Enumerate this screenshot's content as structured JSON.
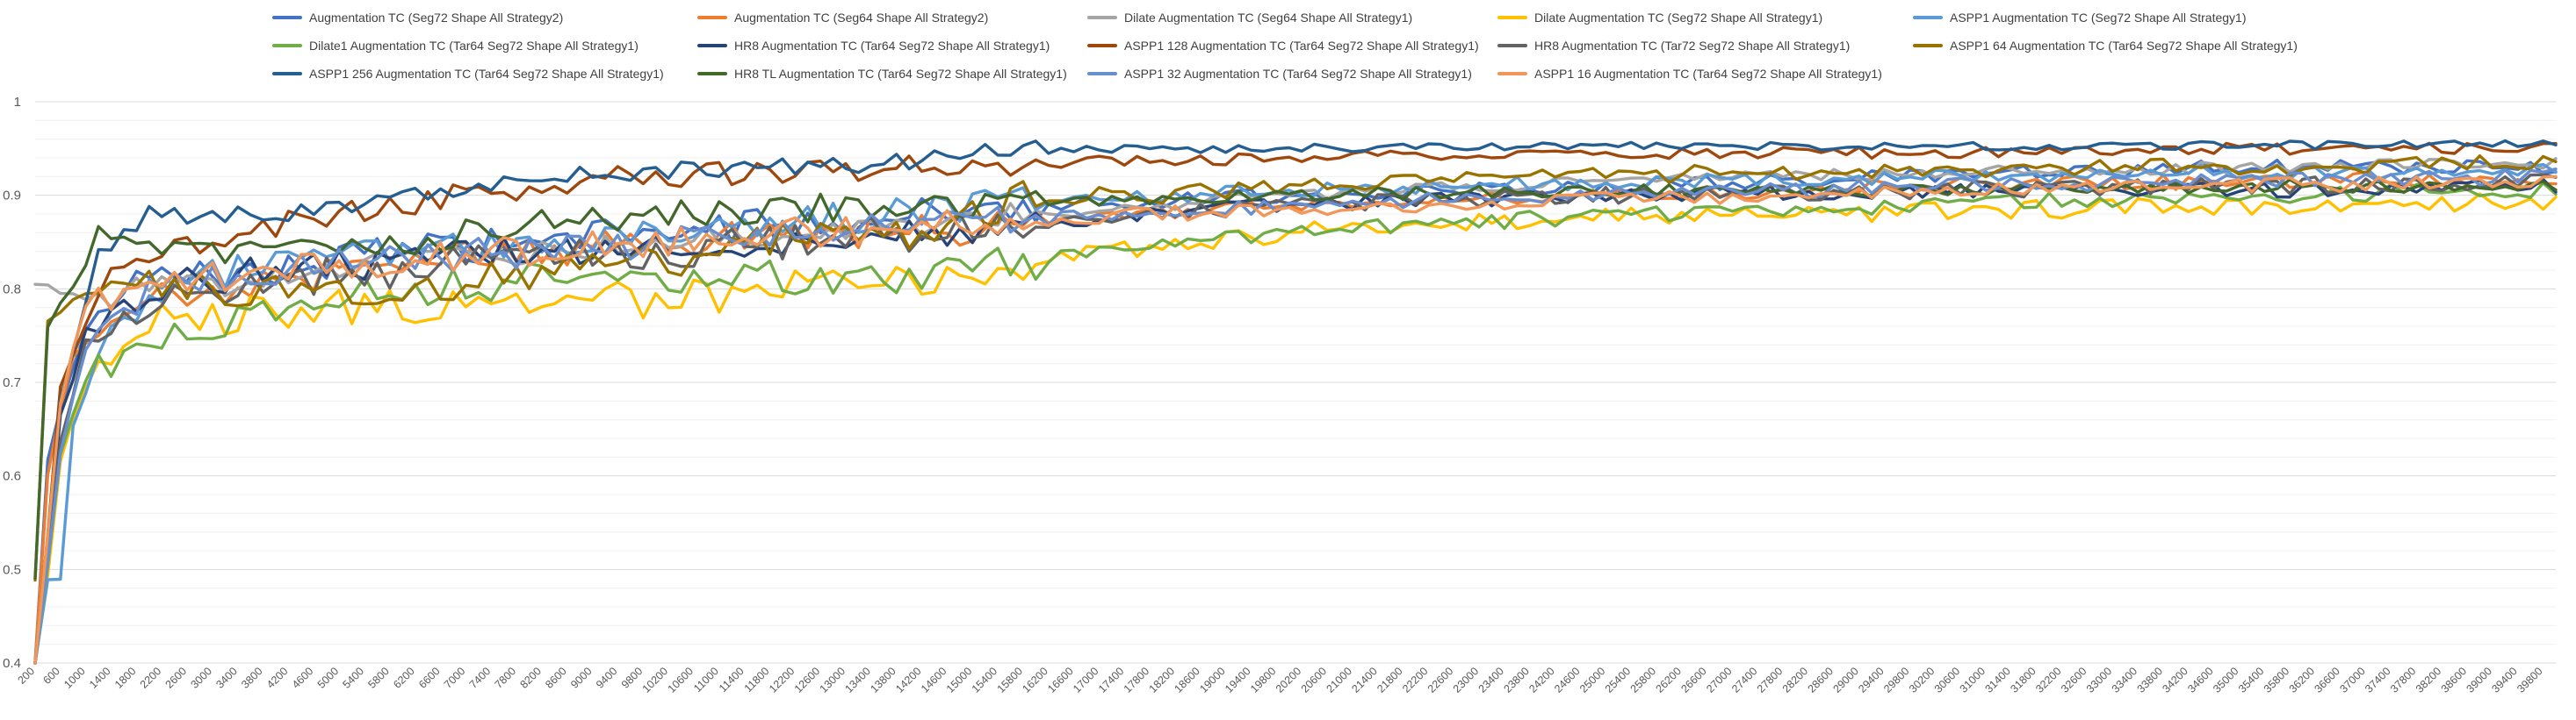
{
  "chart_data": {
    "type": "line",
    "title": "",
    "xlabel": "",
    "ylabel": "",
    "ylim": [
      0.4,
      1.0
    ],
    "y_ticks": [
      "0.4",
      "0.5",
      "0.6",
      "0.7",
      "0.8",
      "0.9",
      "1"
    ],
    "grid": "horizontal major and minor gridlines",
    "legend_position": "top",
    "x_start": 200,
    "x_end": 40000,
    "x_step": 200,
    "x_tick_labels": [
      "200",
      "600",
      "1000",
      "1400",
      "1800",
      "2200",
      "2600",
      "3000",
      "3400",
      "3800",
      "4200",
      "4600",
      "5000",
      "5400",
      "5800",
      "6200",
      "6600",
      "7000",
      "7400",
      "7800",
      "8200",
      "8600",
      "9000",
      "9400",
      "9800",
      "10200",
      "10600",
      "11000",
      "11400",
      "11800",
      "12200",
      "12600",
      "13000",
      "13400",
      "13800",
      "14200",
      "14600",
      "15000",
      "15400",
      "15800",
      "16200",
      "16600",
      "17000",
      "17400",
      "17800",
      "18200",
      "18600",
      "19000",
      "19400",
      "19800",
      "20200",
      "20600",
      "21000",
      "21400",
      "21800",
      "22200",
      "22600",
      "23000",
      "23400",
      "23800",
      "24200",
      "24600",
      "25000",
      "25400",
      "25800",
      "26200",
      "26600",
      "27000",
      "27400",
      "27800",
      "28200",
      "28600",
      "29000",
      "29400",
      "29800",
      "30200",
      "30600",
      "31000",
      "31400",
      "31800",
      "32200",
      "32600",
      "33000",
      "33400",
      "33800",
      "34200",
      "34600",
      "35000",
      "35400",
      "35800",
      "36200",
      "36600",
      "37000",
      "37400",
      "37800",
      "38200",
      "38600",
      "39000",
      "39400",
      "39800"
    ],
    "series": [
      {
        "name": "Augmentation TC (Seg72 Shape All Strategy2)",
        "color": "#4472C4",
        "key_points": [
          [
            200,
            0.38
          ],
          [
            400,
            0.62
          ],
          [
            800,
            0.72
          ],
          [
            1200,
            0.78
          ],
          [
            2000,
            0.81
          ],
          [
            4000,
            0.82
          ],
          [
            6000,
            0.84
          ],
          [
            8000,
            0.85
          ],
          [
            10000,
            0.86
          ],
          [
            12000,
            0.87
          ],
          [
            14000,
            0.88
          ],
          [
            16000,
            0.89
          ],
          [
            20000,
            0.9
          ],
          [
            25000,
            0.91
          ],
          [
            30000,
            0.92
          ],
          [
            35000,
            0.93
          ],
          [
            40000,
            0.93
          ]
        ],
        "noise": 0.018
      },
      {
        "name": "Augmentation TC (Seg64 Shape All Strategy2)",
        "color": "#ED7D31",
        "key_points": [
          [
            200,
            0.38
          ],
          [
            400,
            0.6
          ],
          [
            800,
            0.73
          ],
          [
            1400,
            0.76
          ],
          [
            2000,
            0.79
          ],
          [
            4000,
            0.81
          ],
          [
            6000,
            0.83
          ],
          [
            8000,
            0.84
          ],
          [
            10000,
            0.85
          ],
          [
            12000,
            0.86
          ],
          [
            14000,
            0.86
          ],
          [
            16000,
            0.87
          ],
          [
            20000,
            0.89
          ],
          [
            25000,
            0.9
          ],
          [
            30000,
            0.91
          ],
          [
            35000,
            0.915
          ],
          [
            40000,
            0.92
          ]
        ],
        "noise": 0.018
      },
      {
        "name": "Dilate Augmentation TC (Seg64 Shape All Strategy1)",
        "color": "#A5A5A5",
        "key_points": [
          [
            200,
            0.8
          ],
          [
            600,
            0.8
          ],
          [
            1000,
            0.79
          ],
          [
            2000,
            0.8
          ],
          [
            4000,
            0.81
          ],
          [
            6000,
            0.83
          ],
          [
            8000,
            0.84
          ],
          [
            10000,
            0.85
          ],
          [
            12000,
            0.86
          ],
          [
            14000,
            0.87
          ],
          [
            16000,
            0.88
          ],
          [
            20000,
            0.9
          ],
          [
            25000,
            0.915
          ],
          [
            30000,
            0.925
          ],
          [
            35000,
            0.93
          ],
          [
            40000,
            0.935
          ]
        ],
        "noise": 0.014
      },
      {
        "name": "Dilate Augmentation TC (Seg72 Shape All Strategy1)",
        "color": "#FFC000",
        "key_points": [
          [
            200,
            0.38
          ],
          [
            600,
            0.62
          ],
          [
            1000,
            0.7
          ],
          [
            2000,
            0.76
          ],
          [
            4000,
            0.78
          ],
          [
            6000,
            0.78
          ],
          [
            8000,
            0.78
          ],
          [
            10000,
            0.79
          ],
          [
            12000,
            0.8
          ],
          [
            14000,
            0.81
          ],
          [
            16000,
            0.83
          ],
          [
            18000,
            0.845
          ],
          [
            20000,
            0.86
          ],
          [
            22000,
            0.87
          ],
          [
            24000,
            0.875
          ],
          [
            28000,
            0.88
          ],
          [
            32000,
            0.885
          ],
          [
            36000,
            0.89
          ],
          [
            40000,
            0.895
          ]
        ],
        "noise": 0.022
      },
      {
        "name": "ASPP1 Augmentation TC (Seg72 Shape All Strategy1)",
        "color": "#5B9BD5",
        "key_points": [
          [
            200,
            0.38
          ],
          [
            400,
            0.49
          ],
          [
            600,
            0.49
          ],
          [
            800,
            0.65
          ],
          [
            1400,
            0.75
          ],
          [
            2000,
            0.8
          ],
          [
            4000,
            0.83
          ],
          [
            6000,
            0.84
          ],
          [
            8000,
            0.85
          ],
          [
            10000,
            0.86
          ],
          [
            12000,
            0.87
          ],
          [
            14000,
            0.88
          ],
          [
            16000,
            0.895
          ],
          [
            20000,
            0.905
          ],
          [
            25000,
            0.915
          ],
          [
            30000,
            0.92
          ],
          [
            35000,
            0.925
          ],
          [
            40000,
            0.925
          ]
        ],
        "noise": 0.018
      },
      {
        "name": "Dilate1 Augmentation TC (Tar64 Seg72 Shape All Strategy1)",
        "color": "#70AD47",
        "key_points": [
          [
            200,
            0.38
          ],
          [
            600,
            0.62
          ],
          [
            1000,
            0.7
          ],
          [
            2000,
            0.75
          ],
          [
            4000,
            0.78
          ],
          [
            6000,
            0.8
          ],
          [
            8000,
            0.81
          ],
          [
            10000,
            0.81
          ],
          [
            12000,
            0.81
          ],
          [
            14000,
            0.81
          ],
          [
            15000,
            0.82
          ],
          [
            16000,
            0.83
          ],
          [
            18000,
            0.845
          ],
          [
            20000,
            0.86
          ],
          [
            22000,
            0.87
          ],
          [
            24000,
            0.875
          ],
          [
            26000,
            0.88
          ],
          [
            30000,
            0.89
          ],
          [
            35000,
            0.9
          ],
          [
            40000,
            0.905
          ]
        ],
        "noise": 0.02
      },
      {
        "name": "HR8 Augmentation TC (Tar64 Seg72 Shape All Strategy1)",
        "color": "#264478",
        "key_points": [
          [
            200,
            0.38
          ],
          [
            600,
            0.66
          ],
          [
            1000,
            0.76
          ],
          [
            2000,
            0.8
          ],
          [
            4000,
            0.82
          ],
          [
            6000,
            0.83
          ],
          [
            8000,
            0.84
          ],
          [
            10000,
            0.85
          ],
          [
            12000,
            0.85
          ],
          [
            14000,
            0.86
          ],
          [
            16000,
            0.87
          ],
          [
            18000,
            0.88
          ],
          [
            20000,
            0.89
          ],
          [
            25000,
            0.9
          ],
          [
            30000,
            0.905
          ],
          [
            35000,
            0.905
          ],
          [
            40000,
            0.91
          ]
        ],
        "noise": 0.018
      },
      {
        "name": "ASPP1 128 Augmentation TC (Tar64 Seg72 Shape All Strategy1)",
        "color": "#9E480E",
        "key_points": [
          [
            200,
            0.38
          ],
          [
            600,
            0.7
          ],
          [
            1200,
            0.8
          ],
          [
            2000,
            0.84
          ],
          [
            4000,
            0.87
          ],
          [
            6000,
            0.89
          ],
          [
            8000,
            0.91
          ],
          [
            10000,
            0.92
          ],
          [
            12000,
            0.925
          ],
          [
            14000,
            0.93
          ],
          [
            16000,
            0.935
          ],
          [
            20000,
            0.94
          ],
          [
            25000,
            0.945
          ],
          [
            30000,
            0.945
          ],
          [
            35000,
            0.95
          ],
          [
            40000,
            0.95
          ]
        ],
        "noise": 0.014
      },
      {
        "name": "HR8 Augmentation TC (Tar72 Seg72 Shape All Strategy1)",
        "color": "#636363",
        "key_points": [
          [
            200,
            0.38
          ],
          [
            600,
            0.64
          ],
          [
            1000,
            0.74
          ],
          [
            2000,
            0.79
          ],
          [
            4000,
            0.81
          ],
          [
            6000,
            0.82
          ],
          [
            8000,
            0.83
          ],
          [
            10000,
            0.84
          ],
          [
            12000,
            0.85
          ],
          [
            14000,
            0.86
          ],
          [
            16000,
            0.87
          ],
          [
            20000,
            0.89
          ],
          [
            25000,
            0.9
          ],
          [
            30000,
            0.905
          ],
          [
            35000,
            0.91
          ],
          [
            40000,
            0.915
          ]
        ],
        "noise": 0.02
      },
      {
        "name": "ASPP1 64 Augmentation TC (Tar64 Seg72 Shape All Strategy1)",
        "color": "#997300",
        "key_points": [
          [
            200,
            0.49
          ],
          [
            400,
            0.76
          ],
          [
            800,
            0.79
          ],
          [
            1400,
            0.8
          ],
          [
            2000,
            0.8
          ],
          [
            4000,
            0.8
          ],
          [
            5000,
            0.79
          ],
          [
            6000,
            0.8
          ],
          [
            8000,
            0.82
          ],
          [
            10000,
            0.83
          ],
          [
            12000,
            0.85
          ],
          [
            14000,
            0.86
          ],
          [
            15000,
            0.88
          ],
          [
            16000,
            0.9
          ],
          [
            18000,
            0.9
          ],
          [
            20000,
            0.91
          ],
          [
            22000,
            0.915
          ],
          [
            24000,
            0.92
          ],
          [
            28000,
            0.925
          ],
          [
            32000,
            0.93
          ],
          [
            36000,
            0.93
          ],
          [
            40000,
            0.935
          ]
        ],
        "noise": 0.02
      },
      {
        "name": "ASPP1 256 Augmentation TC (Tar64 Seg72 Shape All Strategy1)",
        "color": "#255E91",
        "key_points": [
          [
            200,
            0.38
          ],
          [
            600,
            0.68
          ],
          [
            1200,
            0.84
          ],
          [
            2000,
            0.88
          ],
          [
            4000,
            0.88
          ],
          [
            6000,
            0.9
          ],
          [
            8000,
            0.92
          ],
          [
            10000,
            0.925
          ],
          [
            12000,
            0.93
          ],
          [
            14000,
            0.935
          ],
          [
            15000,
            0.945
          ],
          [
            16000,
            0.948
          ],
          [
            20000,
            0.95
          ],
          [
            25000,
            0.952
          ],
          [
            30000,
            0.953
          ],
          [
            35000,
            0.953
          ],
          [
            40000,
            0.955
          ]
        ],
        "noise": 0.01
      },
      {
        "name": "HR8 TL Augmentation TC (Tar64 Seg72 Shape All Strategy1)",
        "color": "#43682B",
        "key_points": [
          [
            200,
            0.49
          ],
          [
            400,
            0.76
          ],
          [
            800,
            0.8
          ],
          [
            1200,
            0.86
          ],
          [
            2000,
            0.84
          ],
          [
            4000,
            0.84
          ],
          [
            6000,
            0.85
          ],
          [
            8000,
            0.87
          ],
          [
            10000,
            0.88
          ],
          [
            12000,
            0.885
          ],
          [
            14000,
            0.89
          ],
          [
            16000,
            0.895
          ],
          [
            20000,
            0.9
          ],
          [
            25000,
            0.905
          ],
          [
            30000,
            0.905
          ],
          [
            35000,
            0.91
          ],
          [
            40000,
            0.91
          ]
        ],
        "noise": 0.015
      },
      {
        "name": "ASPP1 32 Augmentation TC (Tar64 Seg72 Shape All Strategy1)",
        "color": "#698ED0",
        "key_points": [
          [
            200,
            0.38
          ],
          [
            600,
            0.63
          ],
          [
            1000,
            0.73
          ],
          [
            2000,
            0.8
          ],
          [
            4000,
            0.82
          ],
          [
            6000,
            0.83
          ],
          [
            8000,
            0.84
          ],
          [
            10000,
            0.85
          ],
          [
            12000,
            0.86
          ],
          [
            14000,
            0.87
          ],
          [
            16000,
            0.875
          ],
          [
            20000,
            0.89
          ],
          [
            25000,
            0.9
          ],
          [
            30000,
            0.91
          ],
          [
            35000,
            0.915
          ],
          [
            40000,
            0.92
          ]
        ],
        "noise": 0.018
      },
      {
        "name": "ASPP1 16 Augmentation TC (Tar64 Seg72 Shape All Strategy1)",
        "color": "#F1975A",
        "key_points": [
          [
            200,
            0.38
          ],
          [
            600,
            0.68
          ],
          [
            1000,
            0.78
          ],
          [
            2000,
            0.8
          ],
          [
            4000,
            0.82
          ],
          [
            6000,
            0.83
          ],
          [
            8000,
            0.84
          ],
          [
            10000,
            0.85
          ],
          [
            12000,
            0.86
          ],
          [
            14000,
            0.865
          ],
          [
            16000,
            0.875
          ],
          [
            20000,
            0.885
          ],
          [
            25000,
            0.895
          ],
          [
            30000,
            0.905
          ],
          [
            35000,
            0.91
          ],
          [
            40000,
            0.915
          ]
        ],
        "noise": 0.018
      }
    ]
  }
}
